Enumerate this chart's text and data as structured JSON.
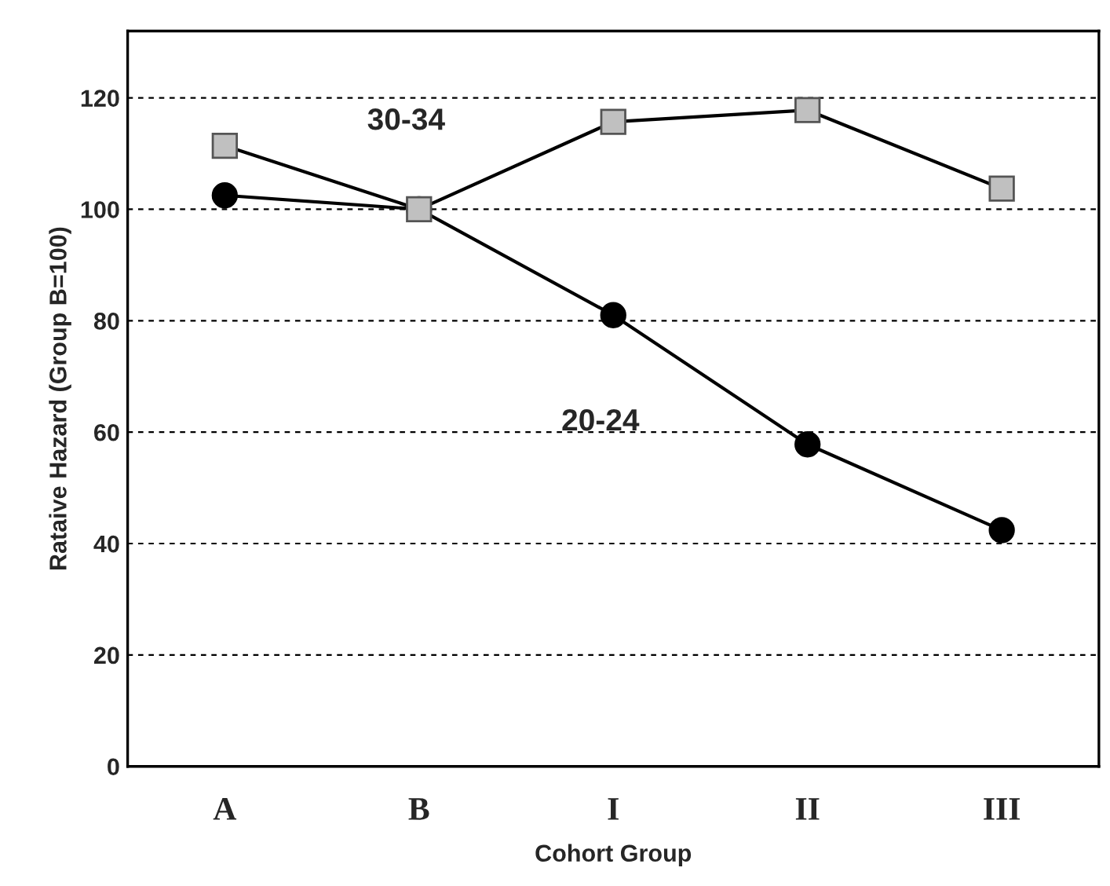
{
  "chart_data": {
    "type": "line",
    "xlabel": "Cohort Group",
    "ylabel": "Rataive Hazard (Group B=100)",
    "categories": [
      "A",
      "B",
      "I",
      "II",
      "III"
    ],
    "series": [
      {
        "name": "30-34",
        "color": "#c0c0c0",
        "marker": "square",
        "values": [
          111.4,
          100,
          115.7,
          117.8,
          103.7
        ]
      },
      {
        "name": "20-24",
        "color": "#000000",
        "marker": "circle",
        "values": [
          102.5,
          100,
          81,
          57.8,
          42.4
        ]
      }
    ],
    "ylim": [
      0,
      132
    ],
    "yticks": [
      0,
      20,
      40,
      60,
      80,
      100,
      120
    ],
    "grid": "y",
    "legend": false,
    "line_style": "solid"
  }
}
